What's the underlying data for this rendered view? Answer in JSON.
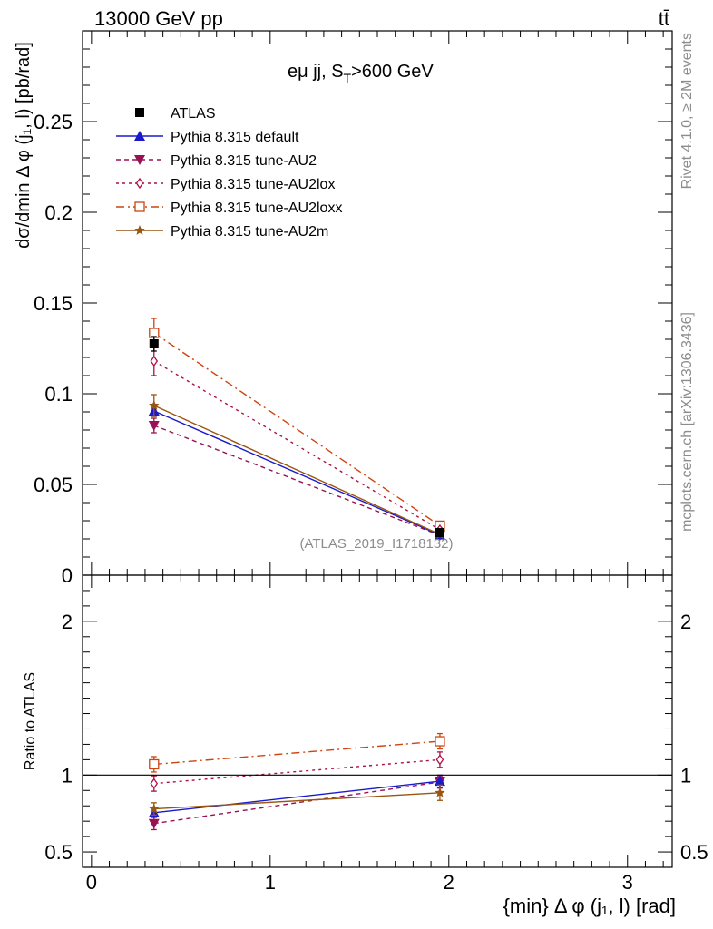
{
  "header": {
    "energy_label": "13000 GeV pp",
    "process_label": "tt̄"
  },
  "plot": {
    "title_main": "eμ jj, S",
    "title_sub": "T",
    "title_tail": ">600 GeV",
    "watermark": "(ATLAS_2019_I1718132)",
    "side_rivet": "Rivet 4.1.0, ≥ 2M events",
    "side_mcplots": "mcplots.cern.ch [arXiv:1306.3436]",
    "ylabel": "dσ/dmin Δ φ (j₁, l) [pb/rad]",
    "ratio_ylabel": "Ratio to ATLAS",
    "xlabel": "{min} Δ φ (j₁, l) [rad]"
  },
  "colors": {
    "atlas": "#000000",
    "default": "#1a1acc",
    "au2": "#991155",
    "au2lox": "#aa1144",
    "au2loxx": "#cc4411",
    "au2m": "#995511"
  },
  "chart_data": {
    "type": "line",
    "x": [
      0.35,
      1.95
    ],
    "xlim": [
      -0.05,
      3.25
    ],
    "xticks": [
      "0",
      "1",
      "2",
      "3"
    ],
    "main_ylim": [
      0,
      0.3
    ],
    "main_yticks": [
      "0",
      "0.05",
      "0.1",
      "0.15",
      "0.2",
      "0.25"
    ],
    "ratio_ylim": [
      0.4,
      2.3
    ],
    "ratio_yticks": [
      "0.5",
      "1",
      "2"
    ],
    "legend_position": "top-left",
    "series": [
      {
        "key": "atlas",
        "name": "ATLAS",
        "marker": "square-filled",
        "values": [
          0.1275,
          0.0235
        ],
        "errors": [
          0.004,
          0.001
        ],
        "ratio": [
          1.0,
          1.0
        ],
        "ratio_errors": [
          0.0,
          0.0
        ]
      },
      {
        "key": "default",
        "name": "Pythia 8.315 default",
        "marker": "triangle-up-filled",
        "dash": "",
        "values": [
          0.0905,
          0.0222
        ],
        "errors": [
          0.003,
          0.001
        ],
        "ratio": [
          0.755,
          0.96
        ],
        "ratio_errors": [
          0.03,
          0.04
        ]
      },
      {
        "key": "au2",
        "name": "Pythia 8.315 tune-AU2",
        "marker": "triangle-down-filled",
        "dash": "5,4",
        "values": [
          0.0825,
          0.022
        ],
        "errors": [
          0.004,
          0.001
        ],
        "ratio": [
          0.685,
          0.955
        ],
        "ratio_errors": [
          0.04,
          0.04
        ]
      },
      {
        "key": "au2lox",
        "name": "Pythia 8.315 tune-AU2lox",
        "marker": "diamond-open",
        "dash": "3,4",
        "values": [
          0.118,
          0.025
        ],
        "errors": [
          0.008,
          0.001
        ],
        "ratio": [
          0.945,
          1.1
        ],
        "ratio_errors": [
          0.05,
          0.05
        ]
      },
      {
        "key": "au2loxx",
        "name": "Pythia 8.315 tune-AU2loxx",
        "marker": "square-open",
        "dash": "9,4,2,4",
        "values": [
          0.1335,
          0.0273
        ],
        "errors": [
          0.008,
          0.001
        ],
        "ratio": [
          1.07,
          1.22
        ],
        "ratio_errors": [
          0.05,
          0.05
        ]
      },
      {
        "key": "au2m",
        "name": "Pythia 8.315 tune-AU2m",
        "marker": "star-filled",
        "dash": "",
        "values": [
          0.0935,
          0.0225
        ],
        "errors": [
          0.006,
          0.001
        ],
        "ratio": [
          0.78,
          0.885
        ],
        "ratio_errors": [
          0.04,
          0.05
        ]
      }
    ]
  }
}
